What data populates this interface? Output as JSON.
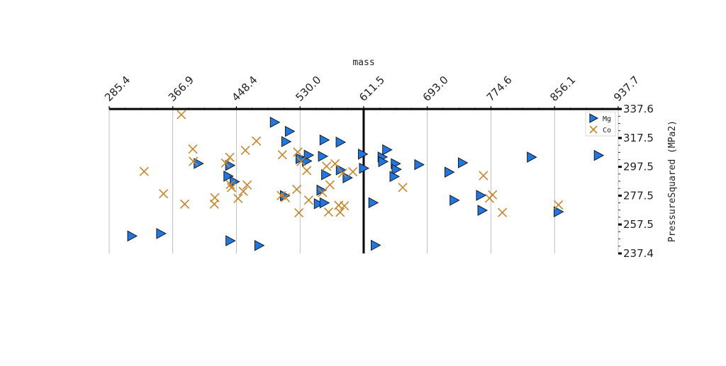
{
  "chart_data": {
    "type": "scatter",
    "title": "",
    "xlabel": "mass",
    "ylabel": "PressureSquared (MPa2)",
    "xlim": [
      285.4,
      937.7
    ],
    "ylim": [
      237.4,
      337.6
    ],
    "y_inverted": true,
    "x_axis_position": "top",
    "y_axis_position": "right",
    "x_ticks": [
      "285.4",
      "366.9",
      "448.4",
      "530.0",
      "611.5",
      "693.0",
      "774.6",
      "856.1",
      "937.7"
    ],
    "y_ticks": [
      "337.6",
      "317.5",
      "297.5",
      "277.5",
      "257.5",
      "237.4"
    ],
    "vertical_reference_line_x": 611.5,
    "grid": "vertical only",
    "legend_position": "top-right",
    "colors": {
      "Mg": "#1f77e4",
      "Co": "#c8862a"
    },
    "series": [
      {
        "name": "Mg",
        "marker": "triangle-right",
        "points": [
          [
            314.5,
            249.5
          ],
          [
            351.6,
            251.2
          ],
          [
            440.4,
            246.2
          ],
          [
            477.4,
            242.9
          ],
          [
            497.3,
            328.4
          ],
          [
            516.5,
            322.1
          ],
          [
            511.9,
            315.0
          ],
          [
            399.6,
            299.8
          ],
          [
            440.0,
            298.5
          ],
          [
            437.8,
            291.0
          ],
          [
            445.8,
            287.2
          ],
          [
            510.2,
            277.5
          ],
          [
            540.8,
            305.6
          ],
          [
            538.5,
            301.5
          ],
          [
            530.2,
            303.2
          ],
          [
            560.9,
            316.1
          ],
          [
            581.6,
            314.6
          ],
          [
            558.9,
            304.8
          ],
          [
            563.0,
            292.0
          ],
          [
            581.8,
            295.4
          ],
          [
            590.5,
            289.9
          ],
          [
            610.1,
            306.3
          ],
          [
            611.5,
            296.5
          ],
          [
            557.0,
            281.3
          ],
          [
            553.6,
            271.9
          ],
          [
            560.9,
            272.5
          ],
          [
            641.2,
            309.3
          ],
          [
            635.3,
            304.3
          ],
          [
            636.1,
            301.1
          ],
          [
            652.2,
            299.7
          ],
          [
            653.2,
            295.7
          ],
          [
            650.6,
            290.8
          ],
          [
            682.3,
            299.0
          ],
          [
            721.0,
            293.8
          ],
          [
            738.2,
            300.3
          ],
          [
            727.5,
            274.3
          ],
          [
            761.4,
            277.7
          ],
          [
            763.3,
            267.3
          ],
          [
            626.5,
            243.1
          ],
          [
            623.5,
            272.6
          ],
          [
            826.5,
            304.2
          ],
          [
            912.4,
            305.4
          ],
          [
            860.9,
            266.3
          ]
        ]
      },
      {
        "name": "Co",
        "marker": "x",
        "points": [
          [
            377.9,
            333.7
          ],
          [
            330.2,
            294.3
          ],
          [
            355.0,
            278.8
          ],
          [
            382.2,
            271.6
          ],
          [
            392.6,
            309.8
          ],
          [
            393.3,
            301.3
          ],
          [
            420.7,
            276.1
          ],
          [
            420.1,
            271.6
          ],
          [
            434.5,
            300.1
          ],
          [
            440.0,
            304.1
          ],
          [
            440.7,
            285.2
          ],
          [
            442.1,
            283.1
          ],
          [
            450.6,
            275.5
          ],
          [
            457.2,
            280.5
          ],
          [
            460.0,
            308.9
          ],
          [
            462.2,
            284.9
          ],
          [
            474.1,
            315.4
          ],
          [
            507.3,
            305.8
          ],
          [
            505.9,
            277.6
          ],
          [
            511.2,
            276.1
          ],
          [
            527.0,
            307.7
          ],
          [
            531.3,
            301.2
          ],
          [
            525.8,
            281.9
          ],
          [
            528.5,
            265.6
          ],
          [
            538.6,
            294.9
          ],
          [
            541.0,
            274.4
          ],
          [
            558.7,
            279.7
          ],
          [
            564.0,
            297.9
          ],
          [
            568.3,
            285.0
          ],
          [
            566.5,
            266.1
          ],
          [
            574.8,
            299.6
          ],
          [
            579.5,
            270.8
          ],
          [
            581.3,
            266.0
          ],
          [
            586.8,
            270.4
          ],
          [
            597.6,
            294.1
          ],
          [
            584.5,
            293.1
          ],
          [
            661.6,
            283.2
          ],
          [
            765.0,
            291.4
          ],
          [
            772.7,
            275.7
          ],
          [
            776.6,
            278.1
          ],
          [
            789.2,
            265.8
          ],
          [
            861.1,
            271.1
          ]
        ]
      }
    ]
  }
}
